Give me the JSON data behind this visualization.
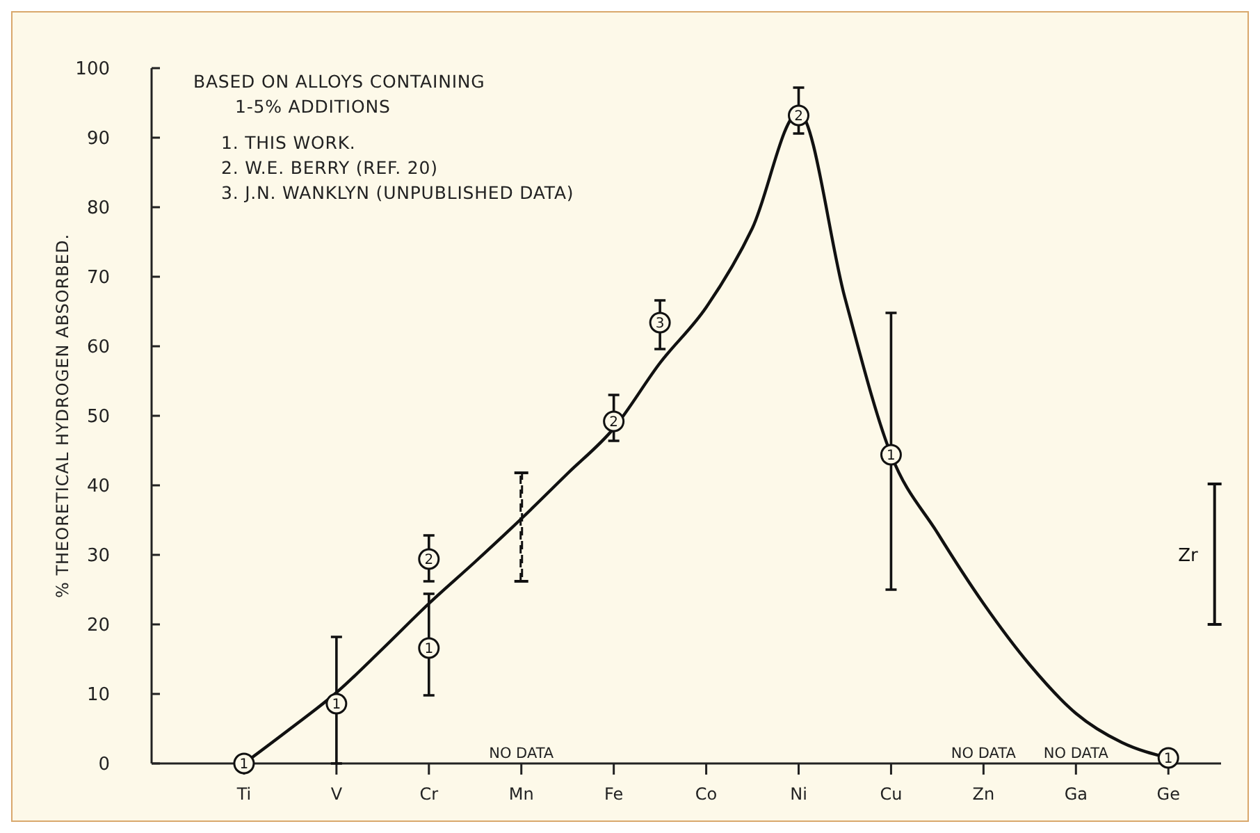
{
  "chart_data": {
    "type": "scatter",
    "ylabel": "% THEORETICAL HYDROGEN ABSORBED.",
    "ylim": [
      0,
      100
    ],
    "categories": [
      "Ti",
      null,
      "V",
      null,
      "Cr",
      null,
      "Mn",
      null,
      "Fe",
      null,
      "Co",
      null,
      "Ni",
      null,
      "Cu",
      null,
      "Zn",
      null,
      "Ga",
      null,
      "Ge",
      null
    ],
    "yticks": [
      0,
      10,
      20,
      30,
      40,
      50,
      60,
      70,
      80,
      90,
      100
    ],
    "grid": false,
    "annotations": [
      "BASED ON ALLOYS CONTAINING",
      "1-5% ADDITIONS",
      "1. THIS WORK.",
      "2. W.E. BERRY (REF. 20)",
      "3. J.N. WANKLYN (UNPUBLISHED DATA)",
      "NO DATA",
      "NO DATA",
      "NO DATA"
    ],
    "series": [
      {
        "type": "line",
        "color": "#111111",
        "marker": "none",
        "line_style": "solid",
        "values": [
          0,
          5,
          10.2,
          16.5,
          23,
          29,
          35.2,
          41.7,
          48.2,
          57.6,
          65.6,
          77,
          93.6,
          67,
          44.4,
          33.2,
          23,
          14.2,
          7.2,
          3,
          0.8,
          null
        ]
      },
      {
        "type": "bar",
        "color": "#111111",
        "line_style": "dashed",
        "base": [
          null,
          null,
          null,
          null,
          null,
          null,
          26.2,
          null,
          null,
          null,
          null,
          null,
          null,
          null,
          null,
          null,
          null,
          null,
          null,
          null,
          null,
          null
        ],
        "values": [
          null,
          null,
          null,
          null,
          null,
          null,
          15.6,
          null,
          null,
          null,
          null,
          null,
          null,
          null,
          null,
          null,
          null,
          null,
          null,
          null,
          null,
          null
        ]
      },
      {
        "type": "bar",
        "name": "Zr",
        "color": "#111111",
        "line_style": "solid",
        "base": [
          null,
          null,
          null,
          null,
          null,
          null,
          null,
          null,
          null,
          null,
          null,
          null,
          null,
          null,
          null,
          null,
          null,
          null,
          null,
          null,
          null,
          20
        ],
        "values": [
          null,
          null,
          null,
          null,
          null,
          null,
          null,
          null,
          null,
          null,
          null,
          null,
          null,
          null,
          null,
          null,
          null,
          null,
          null,
          null,
          null,
          20.2
        ]
      },
      {
        "name": "1",
        "color": "#111111",
        "marker": "circle",
        "values": [
          0,
          null,
          8.6,
          null,
          16.6,
          null,
          null,
          null,
          null,
          null,
          null,
          null,
          null,
          null,
          44.4,
          null,
          null,
          null,
          null,
          null,
          0.8,
          null
        ],
        "errors": [
          null,
          null,
          [
            0,
            18.2
          ],
          null,
          [
            9.8,
            24.4
          ],
          null,
          null,
          null,
          null,
          null,
          null,
          null,
          null,
          null,
          [
            25,
            64.8
          ],
          null,
          null,
          null,
          null,
          null,
          null,
          null
        ]
      },
      {
        "name": "2",
        "color": "#111111",
        "marker": "circle",
        "values": [
          null,
          null,
          null,
          null,
          29.4,
          null,
          null,
          null,
          49.2,
          null,
          null,
          null,
          93.2,
          null,
          null,
          null,
          null,
          null,
          null,
          null,
          null,
          null
        ],
        "errors": [
          null,
          null,
          null,
          null,
          [
            26.2,
            32.8
          ],
          null,
          null,
          null,
          [
            46.4,
            53
          ],
          null,
          null,
          null,
          [
            90.6,
            97.2
          ],
          null,
          null,
          null,
          null,
          null,
          null,
          null,
          null,
          null
        ]
      },
      {
        "name": "3",
        "color": "#111111",
        "marker": "circle",
        "values": [
          null,
          null,
          null,
          null,
          null,
          null,
          null,
          null,
          null,
          63.4,
          null,
          null,
          null,
          null,
          null,
          null,
          null,
          null,
          null,
          null,
          null,
          null
        ],
        "errors": [
          null,
          null,
          null,
          null,
          null,
          null,
          null,
          null,
          null,
          [
            59.6,
            66.6
          ],
          null,
          null,
          null,
          null,
          null,
          null,
          null,
          null,
          null,
          null,
          null,
          null
        ]
      }
    ]
  }
}
